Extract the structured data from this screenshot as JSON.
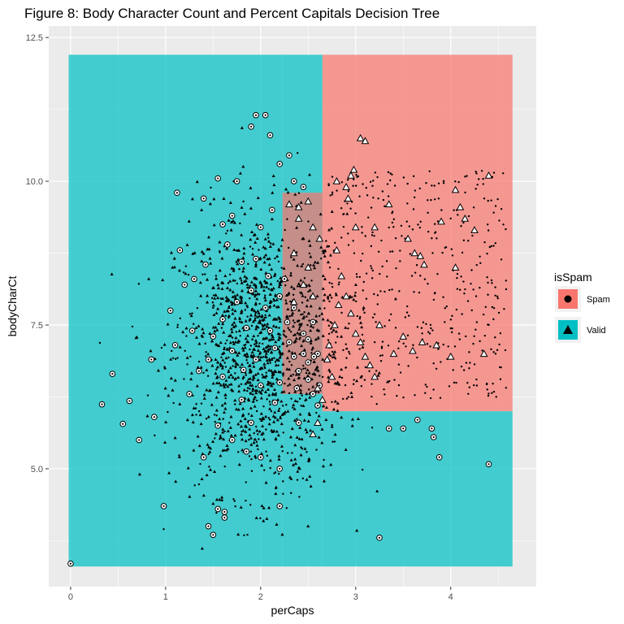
{
  "chart_data": {
    "type": "scatter",
    "title": "Figure 8: Body Character Count and Percent Capitals Decision Tree",
    "xlabel": "perCaps",
    "ylabel": "bodyCharCt",
    "xlim": [
      -0.23,
      4.9
    ],
    "ylim": [
      2.95,
      12.7
    ],
    "x_ticks": [
      0,
      1,
      2,
      3,
      4
    ],
    "x_tick_labels": [
      "0",
      "1",
      "2",
      "3",
      "4"
    ],
    "y_ticks": [
      5.0,
      7.5,
      10.0,
      12.5
    ],
    "y_tick_labels": [
      "5.0",
      "7.5",
      "10.0",
      "12.5"
    ],
    "grid": true,
    "legend": {
      "title": "isSpam",
      "position": "right",
      "entries": [
        {
          "label": "Spam",
          "color": "#F8766D",
          "shape": "circle"
        },
        {
          "label": "Valid",
          "color": "#00BFC4",
          "shape": "triangle"
        }
      ]
    },
    "regions": [
      {
        "class": "Valid",
        "x": [
          -0.02,
          2.23
        ],
        "y": [
          3.3,
          12.2
        ]
      },
      {
        "class": "Valid",
        "x": [
          2.23,
          2.65
        ],
        "y": [
          3.3,
          9.8
        ]
      },
      {
        "class": "Valid",
        "x": [
          2.23,
          2.65
        ],
        "y": [
          9.8,
          12.2
        ]
      },
      {
        "class": "Spam",
        "x": [
          2.23,
          2.65
        ],
        "y": [
          6.3,
          9.8
        ]
      },
      {
        "class": "Spam",
        "x": [
          2.65,
          4.65
        ],
        "y": [
          6.0,
          12.2
        ]
      },
      {
        "class": "Valid",
        "x": [
          2.65,
          4.65
        ],
        "y": [
          3.3,
          6.0
        ]
      }
    ],
    "series": [
      {
        "name": "Spam",
        "shape": "circle",
        "points": [
          [
            0.0,
            3.35
          ],
          [
            0.33,
            6.12
          ],
          [
            0.44,
            6.65
          ],
          [
            0.55,
            5.78
          ],
          [
            0.62,
            6.18
          ],
          [
            0.72,
            5.5
          ],
          [
            0.85,
            6.9
          ],
          [
            0.88,
            5.9
          ],
          [
            0.98,
            4.35
          ],
          [
            1.1,
            7.15
          ],
          [
            1.15,
            8.8
          ],
          [
            1.12,
            9.8
          ],
          [
            1.4,
            5.2
          ],
          [
            1.45,
            4.0
          ],
          [
            1.5,
            3.85
          ],
          [
            1.55,
            4.3
          ],
          [
            1.62,
            4.15
          ],
          [
            1.62,
            4.25
          ],
          [
            1.3,
            8.3
          ],
          [
            1.4,
            9.7
          ],
          [
            1.55,
            10.05
          ],
          [
            1.7,
            9.4
          ],
          [
            1.8,
            8.6
          ],
          [
            1.9,
            10.95
          ],
          [
            1.95,
            11.15
          ],
          [
            2.05,
            11.15
          ],
          [
            2.1,
            10.8
          ],
          [
            2.0,
            9.2
          ],
          [
            1.9,
            8.1
          ],
          [
            1.75,
            7.9
          ],
          [
            1.6,
            7.6
          ],
          [
            1.5,
            7.3
          ],
          [
            1.45,
            6.9
          ],
          [
            1.6,
            6.6
          ],
          [
            1.8,
            6.2
          ],
          [
            1.95,
            6.9
          ],
          [
            2.1,
            7.4
          ],
          [
            2.05,
            7.8
          ],
          [
            2.2,
            8.0
          ],
          [
            2.3,
            7.2
          ],
          [
            2.35,
            6.95
          ],
          [
            2.4,
            6.7
          ],
          [
            2.5,
            6.55
          ],
          [
            2.6,
            7.0
          ],
          [
            2.45,
            7.35
          ],
          [
            2.55,
            7.55
          ],
          [
            2.2,
            6.5
          ],
          [
            2.15,
            6.15
          ],
          [
            1.9,
            5.8
          ],
          [
            1.7,
            5.5
          ],
          [
            1.85,
            5.3
          ],
          [
            2.0,
            5.2
          ],
          [
            2.2,
            5.0
          ],
          [
            2.2,
            4.35
          ],
          [
            2.4,
            5.8
          ],
          [
            2.55,
            6.3
          ],
          [
            2.35,
            10.0
          ],
          [
            2.2,
            10.3
          ],
          [
            2.3,
            10.45
          ],
          [
            2.45,
            9.9
          ],
          [
            3.25,
            3.8
          ],
          [
            3.35,
            5.7
          ],
          [
            3.5,
            5.7
          ],
          [
            3.65,
            5.85
          ],
          [
            3.8,
            5.7
          ],
          [
            3.82,
            5.55
          ],
          [
            3.88,
            5.2
          ],
          [
            4.4,
            5.08
          ],
          [
            1.05,
            7.75
          ],
          [
            1.2,
            8.2
          ],
          [
            1.35,
            6.7
          ],
          [
            1.65,
            8.9
          ],
          [
            1.95,
            8.65
          ],
          [
            2.12,
            9.5
          ],
          [
            2.25,
            8.3
          ],
          [
            2.35,
            7.8
          ],
          [
            2.45,
            7.0
          ],
          [
            2.5,
            6.85
          ],
          [
            2.62,
            6.45
          ],
          [
            2.28,
            7.55
          ],
          [
            1.7,
            7.05
          ],
          [
            1.85,
            7.45
          ],
          [
            2.0,
            6.45
          ],
          [
            1.55,
            5.75
          ],
          [
            1.25,
            6.3
          ],
          [
            1.75,
            10.0
          ],
          [
            1.6,
            9.25
          ],
          [
            2.15,
            7.1
          ],
          [
            2.5,
            7.25
          ],
          [
            2.6,
            6.1
          ],
          [
            2.38,
            6.4
          ],
          [
            1.82,
            6.72
          ],
          [
            2.08,
            8.35
          ],
          [
            1.42,
            8.55
          ],
          [
            1.28,
            7.4
          ],
          [
            2.56,
            6.95
          ]
        ]
      },
      {
        "name": "Valid",
        "shape": "triangle",
        "points": [
          [
            2.3,
            9.6
          ],
          [
            2.4,
            9.35
          ],
          [
            2.55,
            9.2
          ],
          [
            2.62,
            9.0
          ],
          [
            2.35,
            8.75
          ],
          [
            2.5,
            8.5
          ],
          [
            2.45,
            8.2
          ],
          [
            2.35,
            7.9
          ],
          [
            2.55,
            8.0
          ],
          [
            2.8,
            10.0
          ],
          [
            2.9,
            9.9
          ],
          [
            2.92,
            9.7
          ],
          [
            2.95,
            10.1
          ],
          [
            2.98,
            10.2
          ],
          [
            3.05,
            10.75
          ],
          [
            3.1,
            10.7
          ],
          [
            3.2,
            9.2
          ],
          [
            3.35,
            9.6
          ],
          [
            3.55,
            9.0
          ],
          [
            3.62,
            8.75
          ],
          [
            3.68,
            8.7
          ],
          [
            3.72,
            8.55
          ],
          [
            3.9,
            9.3
          ],
          [
            4.05,
            9.85
          ],
          [
            4.1,
            9.55
          ],
          [
            4.15,
            9.35
          ],
          [
            4.25,
            9.15
          ],
          [
            4.4,
            10.1
          ],
          [
            4.05,
            8.5
          ],
          [
            2.8,
            8.8
          ],
          [
            2.85,
            8.35
          ],
          [
            2.9,
            8.0
          ],
          [
            2.95,
            7.7
          ],
          [
            3.0,
            7.35
          ],
          [
            3.05,
            7.2
          ],
          [
            3.1,
            6.95
          ],
          [
            3.15,
            6.8
          ],
          [
            3.2,
            6.6
          ],
          [
            3.25,
            7.5
          ],
          [
            3.4,
            7.0
          ],
          [
            3.5,
            7.3
          ],
          [
            3.6,
            7.05
          ],
          [
            3.7,
            7.2
          ],
          [
            3.85,
            7.15
          ],
          [
            4.0,
            6.95
          ],
          [
            4.35,
            7.0
          ],
          [
            2.75,
            6.6
          ],
          [
            2.7,
            6.9
          ],
          [
            2.72,
            7.15
          ],
          [
            2.78,
            7.5
          ],
          [
            2.82,
            7.85
          ],
          [
            2.65,
            6.2
          ],
          [
            2.6,
            6.4
          ],
          [
            2.6,
            5.8
          ],
          [
            2.55,
            5.6
          ],
          [
            3.0,
            9.2
          ],
          [
            2.4,
            9.55
          ],
          [
            2.5,
            9.65
          ]
        ]
      }
    ],
    "other_points_note": "",
    "label_mark": "icon-labels"
  },
  "colors": {
    "spam": "#F8766D",
    "valid": "#00BFC4",
    "panel": "#EBEBEB",
    "grid": "#FFFFFF"
  }
}
